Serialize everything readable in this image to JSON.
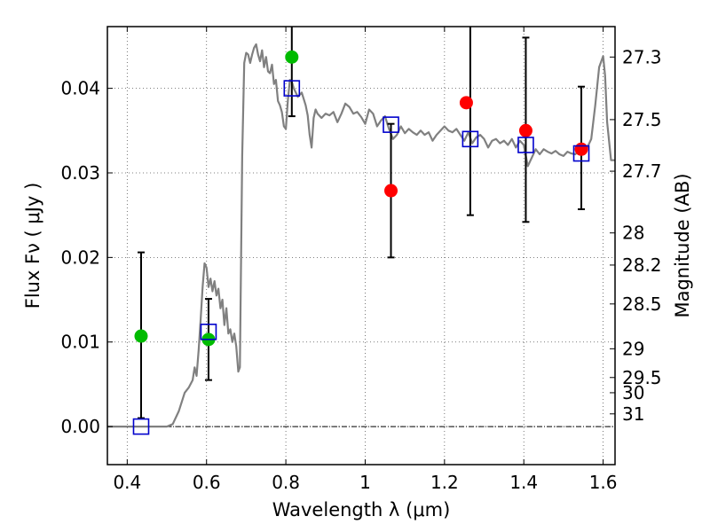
{
  "chart_data": {
    "type": "scatter",
    "title": "",
    "xlabel": "Wavelength  λ (μm)",
    "ylabel": "Flux  Fν  ( μJy )",
    "ylabel_right": "Magnitude (AB)",
    "xlim": [
      0.35,
      1.63
    ],
    "ylim": [
      -0.0045,
      0.0473
    ],
    "grid": true,
    "x_ticks": [
      {
        "value": 0.4,
        "label": "0.4"
      },
      {
        "value": 0.6,
        "label": "0.6"
      },
      {
        "value": 0.8,
        "label": "0.8"
      },
      {
        "value": 1.0,
        "label": "1"
      },
      {
        "value": 1.2,
        "label": "1.2"
      },
      {
        "value": 1.4,
        "label": "1.4"
      },
      {
        "value": 1.6,
        "label": "1.6"
      }
    ],
    "y_ticks": [
      {
        "value": 0.0,
        "label": "0.00"
      },
      {
        "value": 0.01,
        "label": "0.01"
      },
      {
        "value": 0.02,
        "label": "0.02"
      },
      {
        "value": 0.03,
        "label": "0.03"
      },
      {
        "value": 0.04,
        "label": "0.04"
      }
    ],
    "right_ticks": [
      {
        "label": "27.3",
        "flux": 0.0437
      },
      {
        "label": "27.5",
        "flux": 0.0363
      },
      {
        "label": "27.7",
        "flux": 0.0302
      },
      {
        "label": "28",
        "flux": 0.0229
      },
      {
        "label": "28.2",
        "flux": 0.0191
      },
      {
        "label": "28.5",
        "flux": 0.0145
      },
      {
        "label": "29",
        "flux": 0.0092
      },
      {
        "label": "29.5",
        "flux": 0.0058
      },
      {
        "label": "30",
        "flux": 0.004
      },
      {
        "label": "31",
        "flux": 0.0015
      }
    ],
    "series": [
      {
        "type": "line",
        "color": "#808080",
        "x": [
          0.35,
          0.5,
          0.515,
          0.53,
          0.545,
          0.555,
          0.565,
          0.57,
          0.575,
          0.58,
          0.585,
          0.59,
          0.595,
          0.6,
          0.605,
          0.61,
          0.615,
          0.62,
          0.625,
          0.63,
          0.635,
          0.64,
          0.645,
          0.65,
          0.655,
          0.66,
          0.665,
          0.67,
          0.675,
          0.68,
          0.684,
          0.69,
          0.695,
          0.7,
          0.705,
          0.71,
          0.715,
          0.72,
          0.725,
          0.73,
          0.735,
          0.74,
          0.745,
          0.75,
          0.755,
          0.76,
          0.765,
          0.77,
          0.775,
          0.78,
          0.785,
          0.79,
          0.795,
          0.8,
          0.805,
          0.81,
          0.815,
          0.82,
          0.825,
          0.83,
          0.84,
          0.85,
          0.855,
          0.86,
          0.865,
          0.87,
          0.875,
          0.88,
          0.89,
          0.9,
          0.91,
          0.92,
          0.93,
          0.94,
          0.95,
          0.96,
          0.97,
          0.98,
          0.99,
          1.0,
          1.01,
          1.02,
          1.03,
          1.04,
          1.05,
          1.06,
          1.07,
          1.08,
          1.09,
          1.1,
          1.11,
          1.12,
          1.13,
          1.14,
          1.15,
          1.16,
          1.17,
          1.18,
          1.19,
          1.2,
          1.21,
          1.22,
          1.23,
          1.24,
          1.25,
          1.26,
          1.27,
          1.28,
          1.29,
          1.3,
          1.31,
          1.32,
          1.33,
          1.34,
          1.35,
          1.36,
          1.37,
          1.38,
          1.39,
          1.4,
          1.41,
          1.42,
          1.43,
          1.44,
          1.45,
          1.46,
          1.47,
          1.48,
          1.49,
          1.5,
          1.51,
          1.52,
          1.53,
          1.54,
          1.55,
          1.56,
          1.57,
          1.58,
          1.59,
          1.6,
          1.605,
          1.61,
          1.62,
          1.63
        ],
        "y": [
          0.0,
          0.0,
          0.0003,
          0.0018,
          0.004,
          0.0046,
          0.0055,
          0.007,
          0.006,
          0.009,
          0.0125,
          0.0165,
          0.0193,
          0.0188,
          0.0165,
          0.0175,
          0.016,
          0.0172,
          0.0155,
          0.0163,
          0.014,
          0.015,
          0.012,
          0.014,
          0.011,
          0.0115,
          0.01,
          0.011,
          0.0095,
          0.0065,
          0.007,
          0.032,
          0.043,
          0.0442,
          0.044,
          0.043,
          0.044,
          0.0448,
          0.0452,
          0.044,
          0.0432,
          0.0445,
          0.0425,
          0.0437,
          0.042,
          0.0418,
          0.0428,
          0.0405,
          0.041,
          0.0385,
          0.038,
          0.0372,
          0.0355,
          0.0352,
          0.0385,
          0.041,
          0.0408,
          0.04,
          0.0395,
          0.039,
          0.0395,
          0.038,
          0.0368,
          0.0345,
          0.033,
          0.0365,
          0.0375,
          0.037,
          0.0365,
          0.037,
          0.0368,
          0.0372,
          0.036,
          0.037,
          0.0382,
          0.0378,
          0.037,
          0.0372,
          0.0366,
          0.0358,
          0.0375,
          0.037,
          0.0355,
          0.0362,
          0.0367,
          0.0352,
          0.034,
          0.0345,
          0.0355,
          0.0347,
          0.0352,
          0.0348,
          0.0345,
          0.035,
          0.0345,
          0.0348,
          0.0338,
          0.0345,
          0.035,
          0.0355,
          0.035,
          0.0348,
          0.0352,
          0.0345,
          0.0338,
          0.0348,
          0.0335,
          0.0342,
          0.0345,
          0.034,
          0.033,
          0.0338,
          0.034,
          0.0335,
          0.0338,
          0.0333,
          0.034,
          0.033,
          0.0338,
          0.0333,
          0.0308,
          0.0318,
          0.0328,
          0.0322,
          0.0328,
          0.0325,
          0.0323,
          0.0326,
          0.0322,
          0.032,
          0.0325,
          0.0323,
          0.0322,
          0.0328,
          0.0322,
          0.033,
          0.034,
          0.038,
          0.0425,
          0.0438,
          0.0415,
          0.036,
          0.0315,
          0.0315
        ]
      },
      {
        "type": "marker",
        "marker": "circle",
        "color": "#00bb00",
        "x": [
          0.435,
          0.605,
          0.815
        ],
        "y": [
          0.0107,
          0.0103,
          0.0437
        ]
      },
      {
        "type": "marker",
        "marker": "circle",
        "color": "#ff0000",
        "x": [
          1.065,
          1.255,
          1.405,
          1.545
        ],
        "y": [
          0.0279,
          0.0383,
          0.035,
          0.0328
        ]
      },
      {
        "type": "marker",
        "marker": "square",
        "color": "#0000cc",
        "x": [
          0.435,
          0.605,
          0.815,
          1.065,
          1.265,
          1.405,
          1.545
        ],
        "y": [
          0.0,
          0.0112,
          0.04,
          0.0357,
          0.034,
          0.0333,
          0.0323
        ]
      }
    ],
    "error_bars": [
      {
        "x": 0.435,
        "low": 0.001,
        "high": 0.0206
      },
      {
        "x": 0.605,
        "low": 0.0055,
        "high": 0.0151
      },
      {
        "x": 0.815,
        "low": 0.0367,
        "high": 0.0473
      },
      {
        "x": 1.065,
        "low": 0.02,
        "high": 0.0358
      },
      {
        "x": 1.265,
        "low": 0.025,
        "high": 0.0473
      },
      {
        "x": 1.405,
        "low": 0.0242,
        "high": 0.046
      },
      {
        "x": 1.545,
        "low": 0.0257,
        "high": 0.0402
      }
    ]
  }
}
